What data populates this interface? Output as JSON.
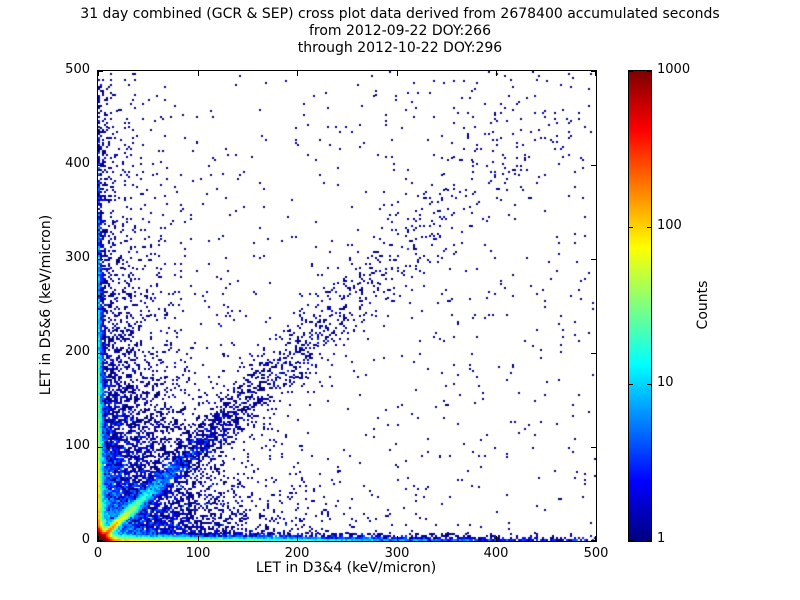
{
  "title": {
    "line1": "31 day combined (GCR & SEP) cross plot data derived from 2678400 accumulated seconds",
    "line2": "from 2012-09-22 DOY:266",
    "line3": "through 2012-10-22 DOY:296"
  },
  "chart_data": {
    "type": "heatmap",
    "subtype": "2d-histogram cross plot (scatter density)",
    "title": "31 day combined (GCR & SEP) cross plot data derived from 2678400 accumulated seconds from 2012-09-22 DOY:266 through 2012-10-22 DOY:296",
    "xlabel": "LET in D3&4 (keV/micron)",
    "ylabel": "LET in D5&6 (keV/micron)",
    "xlim": [
      0,
      500
    ],
    "ylim": [
      0,
      500
    ],
    "xticks": [
      0,
      100,
      200,
      300,
      400,
      500
    ],
    "yticks": [
      0,
      100,
      200,
      300,
      400,
      500
    ],
    "grid": false,
    "accumulated_seconds": 2678400,
    "date_start": "2012-09-22 DOY:266",
    "date_end": "2012-10-22 DOY:296",
    "colormap": "jet",
    "colorbar": {
      "label": "Counts",
      "scale": "log",
      "range": [
        1,
        1000
      ],
      "ticks": [
        1,
        10,
        100,
        1000
      ]
    },
    "bins": 250,
    "seed": 20120922,
    "point_color_min": "#000080",
    "description": "Density of coincident LET events: intense hot core (counts up to ~1000, red/orange/yellow) at the origin below ~10 keV/micron; bright cyan-green diagonal proton/ion track y=x extending to ~100 keV/micron fading to sparse blue along the diagonal up to ~400; dense blue strips hugging both axes; diffuse speckle of single-count (dark blue) events across the lower-left region and sparse isolated events elsewhere.",
    "components": [
      {
        "name": "origin-core",
        "kind": "exp",
        "n": 50000,
        "sx": 3,
        "sy": 3
      },
      {
        "name": "diagonal-low",
        "kind": "diag",
        "n": 9000,
        "scale": 18,
        "jbase": 0.8,
        "jitter": 0.05
      },
      {
        "name": "diagonal-mid",
        "kind": "diag",
        "n": 2500,
        "scale": 150,
        "jbase": 3,
        "jitter": 0.06
      },
      {
        "name": "x-axis-strip",
        "kind": "exp",
        "n": 9000,
        "sx": 110,
        "sy": 1.8
      },
      {
        "name": "y-axis-strip",
        "kind": "exp",
        "n": 9000,
        "sx": 1.8,
        "sy": 90
      },
      {
        "name": "above-diagonal-fan",
        "kind": "exp",
        "n": 4000,
        "sx": 25,
        "sy": 120
      },
      {
        "name": "lower-left-cloud",
        "kind": "exp",
        "n": 4500,
        "sx": 50,
        "sy": 50
      },
      {
        "name": "background-singles",
        "kind": "uniform",
        "n": 700
      }
    ]
  }
}
